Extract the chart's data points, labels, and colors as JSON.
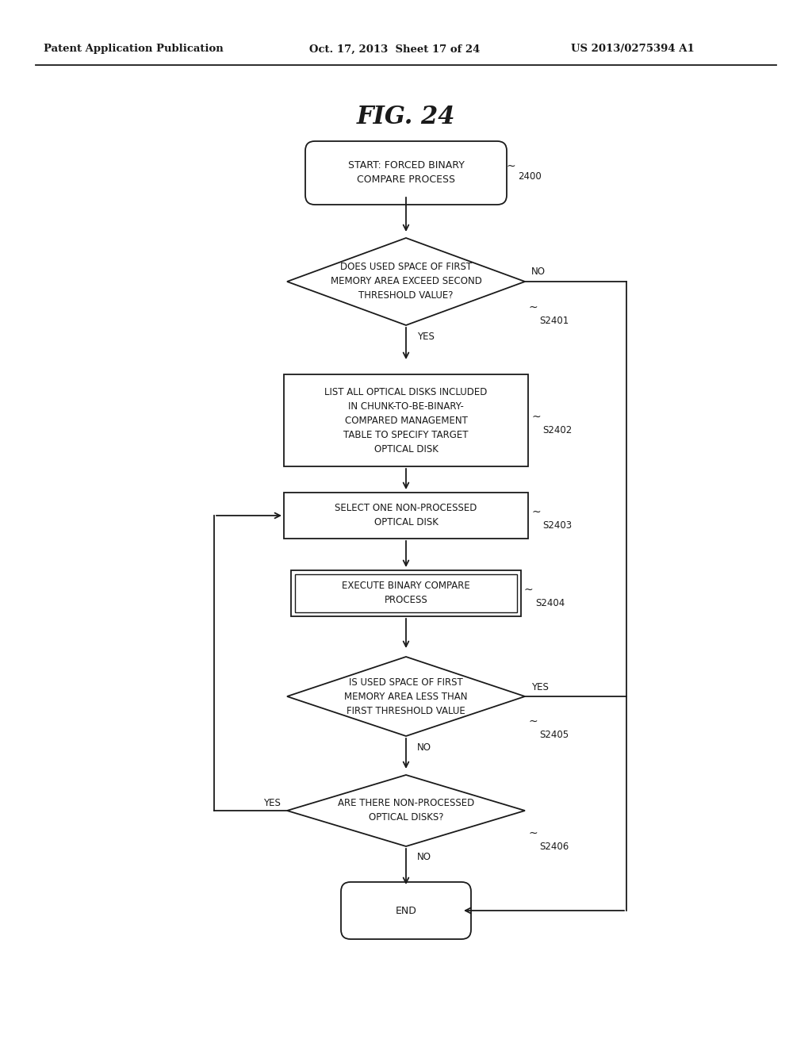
{
  "header_left": "Patent Application Publication",
  "header_mid": "Oct. 17, 2013  Sheet 17 of 24",
  "header_right": "US 2013/0275394 A1",
  "fig_title": "FIG. 24",
  "bg_color": "#ffffff",
  "line_color": "#1a1a1a",
  "text_color": "#1a1a1a",
  "start_label": "START: FORCED BINARY\nCOMPARE PROCESS",
  "start_tag": "2400",
  "d1_label": "DOES USED SPACE OF FIRST\nMEMORY AREA EXCEED SECOND\nTHRESHOLD VALUE?",
  "d1_tag": "S2401",
  "d1_no": "NO",
  "d1_yes": "YES",
  "r2_label": "LIST ALL OPTICAL DISKS INCLUDED\nIN CHUNK-TO-BE-BINARY-\nCOMPARED MANAGEMENT\nTABLE TO SPECIFY TARGET\nOPTICAL DISK",
  "r2_tag": "S2402",
  "r3_label": "SELECT ONE NON-PROCESSED\nOPTICAL DISK",
  "r3_tag": "S2403",
  "r4_label": "EXECUTE BINARY COMPARE\nPROCESS",
  "r4_tag": "S2404",
  "d5_label": "IS USED SPACE OF FIRST\nMEMORY AREA LESS THAN\nFIRST THRESHOLD VALUE",
  "d5_tag": "S2405",
  "d5_yes": "YES",
  "d5_no": "NO",
  "d6_label": "ARE THERE NON-PROCESSED\nOPTICAL DISKS?",
  "d6_tag": "S2406",
  "d6_yes": "YES",
  "d6_no": "NO",
  "end_label": "END"
}
